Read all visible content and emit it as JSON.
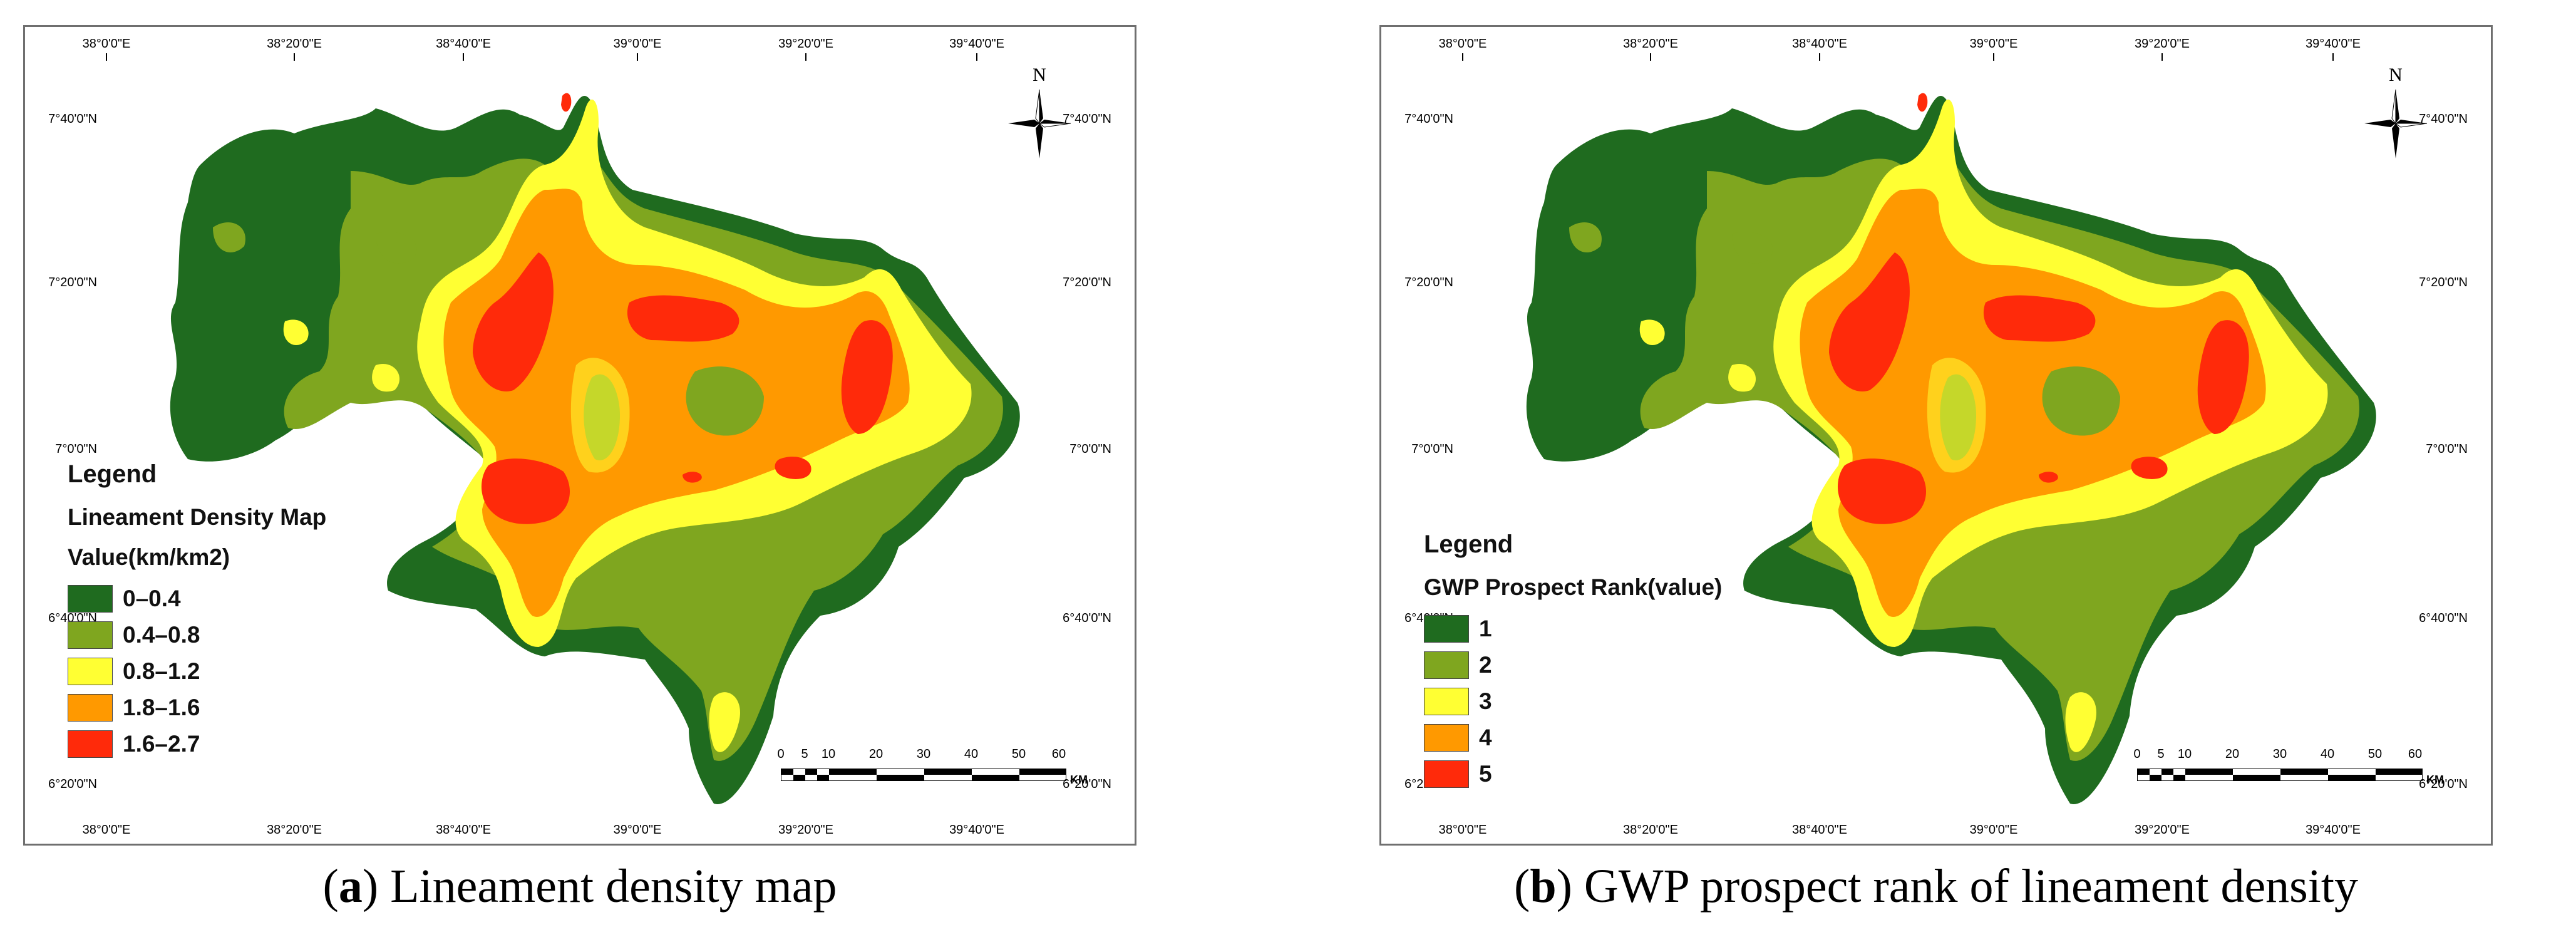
{
  "colors": {
    "class1": "#1f6b1f",
    "class2": "#7fa61f",
    "class3": "#ffff33",
    "class4": "#ff9900",
    "class5": "#ff2a0a",
    "frame": "#6f6f6f"
  },
  "panels": [
    {
      "id": "a",
      "caption_letter": "a",
      "caption_text": " Lineament density map",
      "longitudes": [
        "38°0'0\"E",
        "38°20'0\"E",
        "38°40'0\"E",
        "39°0'0\"E",
        "39°20'0\"E",
        "39°40'0\"E"
      ],
      "latitudes": [
        "7°40'0\"N",
        "7°20'0\"N",
        "7°0'0\"N",
        "6°40'0\"N",
        "6°20'0\"N"
      ],
      "legend": {
        "title": "Legend",
        "subtitle": "Lineament Density Map",
        "subtitle2": "Value(km/km2)",
        "classes": [
          {
            "label": "0–0.4",
            "color": "#1f6b1f"
          },
          {
            "label": "0.4–0.8",
            "color": "#7fa61f"
          },
          {
            "label": "0.8–1.2",
            "color": "#ffff33"
          },
          {
            "label": "1.8–1.6",
            "color": "#ff9900"
          },
          {
            "label": "1.6–2.7",
            "color": "#ff2a0a"
          }
        ]
      }
    },
    {
      "id": "b",
      "caption_letter": "b",
      "caption_text": " GWP prospect rank of lineament density",
      "longitudes": [
        "38°0'0\"E",
        "38°20'0\"E",
        "38°40'0\"E",
        "39°0'0\"E",
        "39°20'0\"E",
        "39°40'0\"E"
      ],
      "latitudes": [
        "7°40'0\"N",
        "7°20'0\"N",
        "7°0'0\"N",
        "6°40'0\"N",
        "6°20'0\"N"
      ],
      "legend": {
        "title": "Legend",
        "subtitle": "GWP Prospect Rank(value)",
        "classes": [
          {
            "label": "1",
            "color": "#1f6b1f"
          },
          {
            "label": "2",
            "color": "#7fa61f"
          },
          {
            "label": "3",
            "color": "#ffff33"
          },
          {
            "label": "4",
            "color": "#ff9900"
          },
          {
            "label": "5",
            "color": "#ff2a0a"
          }
        ]
      }
    }
  ],
  "scale_bar": {
    "ticks": [
      "0",
      "5",
      "10",
      "20",
      "30",
      "40",
      "50",
      "60"
    ],
    "tick_km": [
      0,
      5,
      10,
      20,
      30,
      40,
      50,
      60
    ],
    "unit": "KM"
  },
  "north_arrow": {
    "label": "N"
  }
}
